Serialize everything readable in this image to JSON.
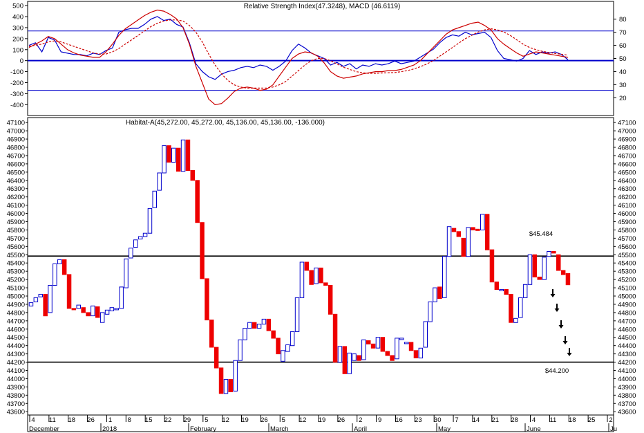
{
  "chart_data": [
    {
      "type": "line",
      "title": "Relative Strength Index(47.3248), MACD (46.6119)",
      "left_axis": {
        "ylim": [
          -480,
          520
        ],
        "ticks": [
          500,
          400,
          300,
          200,
          100,
          0,
          -100,
          -200,
          -300,
          -400
        ]
      },
      "right_axis": {
        "ylim": [
          8,
          92
        ],
        "ticks": [
          80,
          70,
          60,
          50,
          40,
          30,
          20
        ]
      },
      "reference_lines": {
        "upper": 270,
        "zero": 0,
        "lower": -270
      },
      "x": [
        "2017-12-01",
        "2017-12-04",
        "2017-12-06",
        "2017-12-08",
        "2017-12-11",
        "2017-12-13",
        "2017-12-15",
        "2017-12-18",
        "2017-12-20",
        "2017-12-22",
        "2017-12-26",
        "2017-12-28",
        "2018-01-01",
        "2018-01-03",
        "2018-01-05",
        "2018-01-08",
        "2018-01-10",
        "2018-01-12",
        "2018-01-15",
        "2018-01-17",
        "2018-01-19",
        "2018-01-22",
        "2018-01-24",
        "2018-01-26",
        "2018-01-29",
        "2018-01-31",
        "2018-02-02",
        "2018-02-05",
        "2018-02-07",
        "2018-02-09",
        "2018-02-12",
        "2018-02-14",
        "2018-02-16",
        "2018-02-19",
        "2018-02-21",
        "2018-02-23",
        "2018-02-26",
        "2018-02-28",
        "2018-03-02",
        "2018-03-05",
        "2018-03-07",
        "2018-03-09",
        "2018-03-12",
        "2018-03-14",
        "2018-03-16",
        "2018-03-19",
        "2018-03-21",
        "2018-03-23",
        "2018-03-26",
        "2018-03-28",
        "2018-03-30",
        "2018-04-02",
        "2018-04-04",
        "2018-04-06",
        "2018-04-09",
        "2018-04-11",
        "2018-04-13",
        "2018-04-16",
        "2018-04-18",
        "2018-04-20",
        "2018-04-23",
        "2018-04-25",
        "2018-04-27",
        "2018-04-30",
        "2018-05-02",
        "2018-05-04",
        "2018-05-07",
        "2018-05-09",
        "2018-05-11",
        "2018-05-14",
        "2018-05-16",
        "2018-05-18",
        "2018-05-21",
        "2018-05-23",
        "2018-05-25",
        "2018-05-28",
        "2018-05-30",
        "2018-06-01",
        "2018-06-04",
        "2018-06-06",
        "2018-06-08",
        "2018-06-11",
        "2018-06-13",
        "2018-06-15",
        "2018-06-18"
      ],
      "series": [
        {
          "color": "#0000cc",
          "style": "solid",
          "axis": "right",
          "values": [
            60,
            62,
            55,
            66,
            64,
            55,
            54,
            53,
            53,
            52,
            54,
            53,
            56,
            58,
            70,
            72,
            73,
            73,
            76,
            80,
            82,
            79,
            80,
            76,
            74,
            62,
            46,
            40,
            36,
            34,
            38,
            40,
            41,
            43,
            44,
            43,
            45,
            44,
            41,
            44,
            48,
            56,
            61,
            58,
            54,
            52,
            50,
            45,
            47,
            44,
            46,
            42,
            45,
            44,
            46,
            45,
            46,
            48,
            46,
            47,
            48,
            51,
            54,
            57,
            62,
            66,
            68,
            67,
            70,
            68,
            69,
            70,
            66,
            56,
            50,
            49,
            48,
            50,
            56,
            53,
            55,
            54,
            55,
            53,
            49
          ]
        },
        {
          "color": "#cc0000",
          "style": "solid",
          "axis": "left",
          "values": [
            120,
            150,
            180,
            220,
            200,
            150,
            100,
            70,
            50,
            40,
            30,
            30,
            80,
            150,
            230,
            290,
            330,
            370,
            410,
            440,
            460,
            450,
            420,
            380,
            300,
            150,
            -50,
            -200,
            -350,
            -400,
            -390,
            -340,
            -280,
            -250,
            -240,
            -250,
            -270,
            -260,
            -220,
            -140,
            -60,
            20,
            60,
            80,
            70,
            40,
            -20,
            -100,
            -140,
            -160,
            -150,
            -140,
            -120,
            -110,
            -100,
            -100,
            -90,
            -90,
            -80,
            -60,
            -40,
            0,
            60,
            120,
            180,
            240,
            280,
            300,
            320,
            340,
            350,
            320,
            280,
            200,
            150,
            110,
            70,
            40,
            60,
            80,
            70,
            60,
            50,
            40,
            30
          ]
        },
        {
          "color": "#cc0000",
          "style": "dashed",
          "axis": "left",
          "values": [
            130,
            140,
            150,
            170,
            180,
            170,
            150,
            130,
            110,
            90,
            70,
            60,
            60,
            80,
            110,
            150,
            190,
            230,
            270,
            310,
            340,
            360,
            370,
            370,
            360,
            320,
            260,
            170,
            60,
            -40,
            -120,
            -180,
            -220,
            -240,
            -250,
            -250,
            -250,
            -250,
            -240,
            -220,
            -190,
            -140,
            -90,
            -40,
            0,
            20,
            20,
            0,
            -30,
            -60,
            -80,
            -100,
            -110,
            -115,
            -115,
            -112,
            -110,
            -108,
            -100,
            -90,
            -75,
            -55,
            -30,
            0,
            40,
            80,
            120,
            160,
            200,
            230,
            260,
            280,
            290,
            280,
            260,
            230,
            190,
            150,
            120,
            100,
            85,
            75,
            65,
            58,
            50
          ]
        }
      ]
    },
    {
      "type": "candlestick",
      "title": "Habitat-A(45,272.00, 45,272.00, 45,136.00, 45,136.00, -136.000)",
      "ylim": [
        43560,
        47160
      ],
      "y_ticks": [
        47100,
        47000,
        46900,
        46800,
        46700,
        46600,
        46500,
        46400,
        46300,
        46200,
        46100,
        46000,
        45900,
        45800,
        45700,
        45600,
        45500,
        45400,
        45300,
        45200,
        45100,
        45000,
        44900,
        44800,
        44700,
        44600,
        44500,
        44400,
        44300,
        44200,
        44100,
        44000,
        43900,
        43800,
        43700,
        43600
      ],
      "x_axis": {
        "day_ticks": [
          "4",
          "11",
          "18",
          "26",
          "1",
          "8",
          "15",
          "22",
          "29",
          "5",
          "12",
          "19",
          "26",
          "5",
          "12",
          "19",
          "26",
          "2",
          "9",
          "16",
          "23",
          "30",
          "7",
          "14",
          "21",
          "28",
          "4",
          "11",
          "18",
          "25",
          "2"
        ],
        "months": [
          "December",
          "2018",
          "February",
          "March",
          "April",
          "May",
          "June",
          "Ju"
        ]
      },
      "horizontal_levels": [
        45484,
        44200
      ],
      "annotations": [
        "$45.484",
        "$44.200"
      ],
      "up_color": "#0000cc",
      "down_color": "#ee0000",
      "candles": [
        {
          "o": 44880,
          "c": 44920
        },
        {
          "o": 44930,
          "c": 44980
        },
        {
          "o": 44990,
          "c": 45020
        },
        {
          "o": 45020,
          "c": 44760
        },
        {
          "o": 44800,
          "c": 45130
        },
        {
          "o": 45130,
          "c": 45390
        },
        {
          "o": 45390,
          "c": 45440
        },
        {
          "o": 45440,
          "c": 45260
        },
        {
          "o": 45260,
          "c": 44850
        },
        {
          "o": 44850,
          "c": 44840
        },
        {
          "o": 44850,
          "c": 44890
        },
        {
          "o": 44860,
          "c": 44800
        },
        {
          "o": 44800,
          "c": 44760
        },
        {
          "o": 44760,
          "c": 44880
        },
        {
          "o": 44870,
          "c": 44740
        },
        {
          "o": 44680,
          "c": 44800
        },
        {
          "o": 44780,
          "c": 44830
        },
        {
          "o": 44820,
          "c": 44860
        },
        {
          "o": 44850,
          "c": 44850
        },
        {
          "o": 44850,
          "c": 45110
        },
        {
          "o": 45100,
          "c": 45450
        },
        {
          "o": 45460,
          "c": 45580
        },
        {
          "o": 45590,
          "c": 45680
        },
        {
          "o": 45690,
          "c": 45720
        },
        {
          "o": 45720,
          "c": 45760
        },
        {
          "o": 45760,
          "c": 46060
        },
        {
          "o": 46070,
          "c": 46270
        },
        {
          "o": 46280,
          "c": 46490
        },
        {
          "o": 46490,
          "c": 46820
        },
        {
          "o": 46820,
          "c": 46620
        },
        {
          "o": 46620,
          "c": 46790
        },
        {
          "o": 46790,
          "c": 46510
        },
        {
          "o": 46510,
          "c": 46890
        },
        {
          "o": 46890,
          "c": 46520
        },
        {
          "o": 46520,
          "c": 46400
        },
        {
          "o": 46400,
          "c": 45890
        },
        {
          "o": 45890,
          "c": 45210
        },
        {
          "o": 45210,
          "c": 44710
        },
        {
          "o": 44710,
          "c": 44380
        },
        {
          "o": 44380,
          "c": 44130
        },
        {
          "o": 44130,
          "c": 43820
        },
        {
          "o": 43820,
          "c": 43990
        },
        {
          "o": 43990,
          "c": 43840
        },
        {
          "o": 43850,
          "c": 44220
        },
        {
          "o": 44220,
          "c": 44470
        },
        {
          "o": 44470,
          "c": 44610
        },
        {
          "o": 44610,
          "c": 44680
        },
        {
          "o": 44680,
          "c": 44610
        },
        {
          "o": 44610,
          "c": 44660
        },
        {
          "o": 44660,
          "c": 44720
        },
        {
          "o": 44720,
          "c": 44580
        },
        {
          "o": 44580,
          "c": 44490
        },
        {
          "o": 44490,
          "c": 44300
        },
        {
          "o": 44210,
          "c": 44340
        },
        {
          "o": 44330,
          "c": 44410
        },
        {
          "o": 44400,
          "c": 44570
        },
        {
          "o": 44570,
          "c": 44980
        },
        {
          "o": 44980,
          "c": 45410
        },
        {
          "o": 45410,
          "c": 45310
        },
        {
          "o": 45310,
          "c": 45140
        },
        {
          "o": 45150,
          "c": 45340
        },
        {
          "o": 45340,
          "c": 45160
        },
        {
          "o": 45160,
          "c": 45130
        },
        {
          "o": 45130,
          "c": 44780
        },
        {
          "o": 44780,
          "c": 44200
        },
        {
          "o": 44200,
          "c": 44390
        },
        {
          "o": 44390,
          "c": 44060
        },
        {
          "o": 44060,
          "c": 44310
        },
        {
          "o": 44220,
          "c": 44300
        },
        {
          "o": 44280,
          "c": 44220
        },
        {
          "o": 44230,
          "c": 44470
        },
        {
          "o": 44460,
          "c": 44420
        },
        {
          "o": 44420,
          "c": 44370
        },
        {
          "o": 44370,
          "c": 44500
        },
        {
          "o": 44500,
          "c": 44330
        },
        {
          "o": 44330,
          "c": 44280
        },
        {
          "o": 44280,
          "c": 44220
        },
        {
          "o": 44240,
          "c": 44490
        },
        {
          "o": 44490,
          "c": 44490
        },
        {
          "o": 44440,
          "c": 44440
        },
        {
          "o": 44440,
          "c": 44340
        },
        {
          "o": 44340,
          "c": 44250
        },
        {
          "o": 44250,
          "c": 44370
        },
        {
          "o": 44380,
          "c": 44690
        },
        {
          "o": 44690,
          "c": 44930
        },
        {
          "o": 44930,
          "c": 45100
        },
        {
          "o": 45110,
          "c": 44970
        },
        {
          "o": 44980,
          "c": 45480
        },
        {
          "o": 45480,
          "c": 45840
        },
        {
          "o": 45820,
          "c": 45780
        },
        {
          "o": 45780,
          "c": 45720
        },
        {
          "o": 45700,
          "c": 45480
        },
        {
          "o": 45480,
          "c": 45830
        },
        {
          "o": 45830,
          "c": 45800
        },
        {
          "o": 45810,
          "c": 45800
        },
        {
          "o": 45800,
          "c": 45990
        },
        {
          "o": 45990,
          "c": 45560
        },
        {
          "o": 45560,
          "c": 45170
        },
        {
          "o": 45170,
          "c": 45080
        },
        {
          "o": 45070,
          "c": 45080
        },
        {
          "o": 45080,
          "c": 45020
        },
        {
          "o": 45020,
          "c": 44680
        },
        {
          "o": 44680,
          "c": 44730
        },
        {
          "o": 44740,
          "c": 44980
        },
        {
          "o": 44980,
          "c": 45140
        },
        {
          "o": 45140,
          "c": 45500
        },
        {
          "o": 45500,
          "c": 45230
        },
        {
          "o": 45230,
          "c": 45200
        },
        {
          "o": 45200,
          "c": 45470
        },
        {
          "o": 45480,
          "c": 45540
        },
        {
          "o": 45540,
          "c": 45520
        },
        {
          "o": 45500,
          "c": 45310
        },
        {
          "o": 45310,
          "c": 45260
        },
        {
          "o": 45272,
          "c": 45136
        }
      ]
    }
  ]
}
